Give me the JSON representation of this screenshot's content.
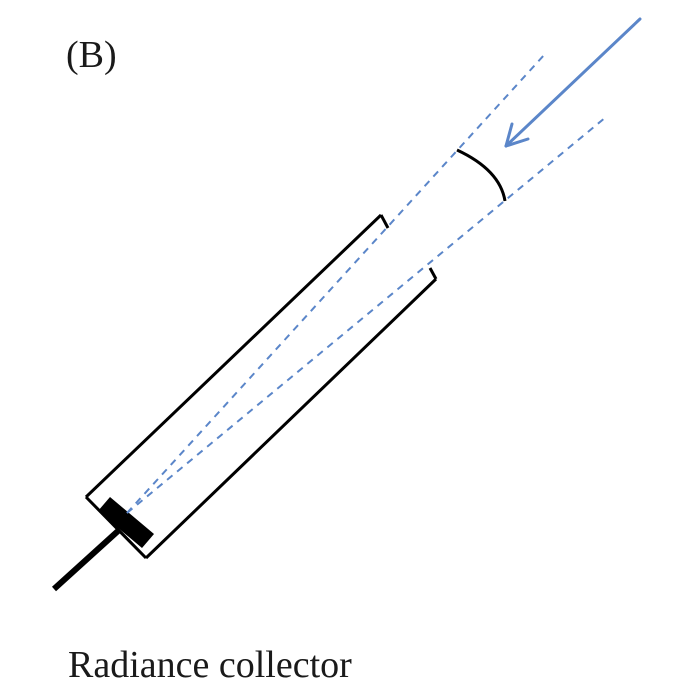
{
  "panel_label": "(B)",
  "caption": "Radiance collector",
  "colors": {
    "light_ray": "#5b86c9",
    "arrow": "#5b86c9",
    "outline": "#000000",
    "sensor": "#000000"
  },
  "icons": [
    "incoming-radiation-arrow",
    "detector-sensor",
    "field-of-view-arc"
  ]
}
